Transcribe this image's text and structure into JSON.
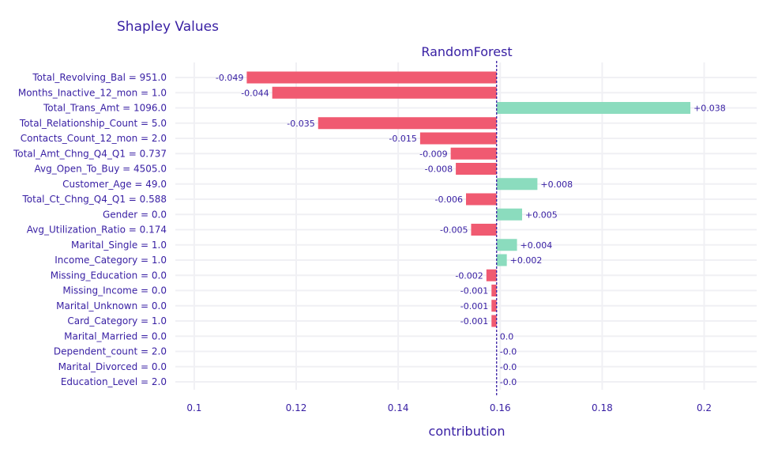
{
  "chart_data": {
    "type": "bar",
    "orientation": "horizontal",
    "title": "Shapley Values",
    "subtitle": "RandomForest",
    "xlabel": "contribution",
    "ylabel": "",
    "baseline": 0.1593,
    "xlim": [
      0.0963,
      0.2103
    ],
    "xticks": [
      0.1,
      0.12,
      0.14,
      0.16,
      0.18,
      0.2
    ],
    "xtick_labels": [
      "0.1",
      "0.12",
      "0.14",
      "0.16",
      "0.18",
      "0.2"
    ],
    "grid": true,
    "colors": {
      "positive": "#8bdcbe",
      "negative": "#f05a71",
      "text": "#371ea3",
      "grid": "#f0f0f4",
      "baseline": "#371ea3"
    },
    "categories": [
      "Total_Revolving_Bal = 951.0",
      "Months_Inactive_12_mon = 1.0",
      "Total_Trans_Amt = 1096.0",
      "Total_Relationship_Count = 5.0",
      "Contacts_Count_12_mon = 2.0",
      "Total_Amt_Chng_Q4_Q1 = 0.737",
      "Avg_Open_To_Buy = 4505.0",
      "Customer_Age = 49.0",
      "Total_Ct_Chng_Q4_Q1 = 0.588",
      "Gender = 0.0",
      "Avg_Utilization_Ratio = 0.174",
      "Marital_Single = 1.0",
      "Income_Category = 1.0",
      "Missing_Education = 0.0",
      "Missing_Income = 0.0",
      "Marital_Unknown = 0.0",
      "Card_Category = 1.0",
      "Marital_Married = 0.0",
      "Dependent_count = 2.0",
      "Marital_Divorced = 0.0",
      "Education_Level = 2.0"
    ],
    "values": [
      -0.049,
      -0.044,
      0.038,
      -0.035,
      -0.015,
      -0.009,
      -0.008,
      0.008,
      -0.006,
      0.005,
      -0.005,
      0.004,
      0.002,
      -0.002,
      -0.001,
      -0.001,
      -0.001,
      0.0,
      -0.0,
      -0.0,
      -0.0
    ],
    "value_labels": [
      "-0.049",
      "-0.044",
      "+0.038",
      "-0.035",
      "-0.015",
      "-0.009",
      "-0.008",
      "+0.008",
      "-0.006",
      "+0.005",
      "-0.005",
      "+0.004",
      "+0.002",
      "-0.002",
      "-0.001",
      "-0.001",
      "-0.001",
      "0.0",
      "-0.0",
      "-0.0",
      "-0.0"
    ]
  }
}
